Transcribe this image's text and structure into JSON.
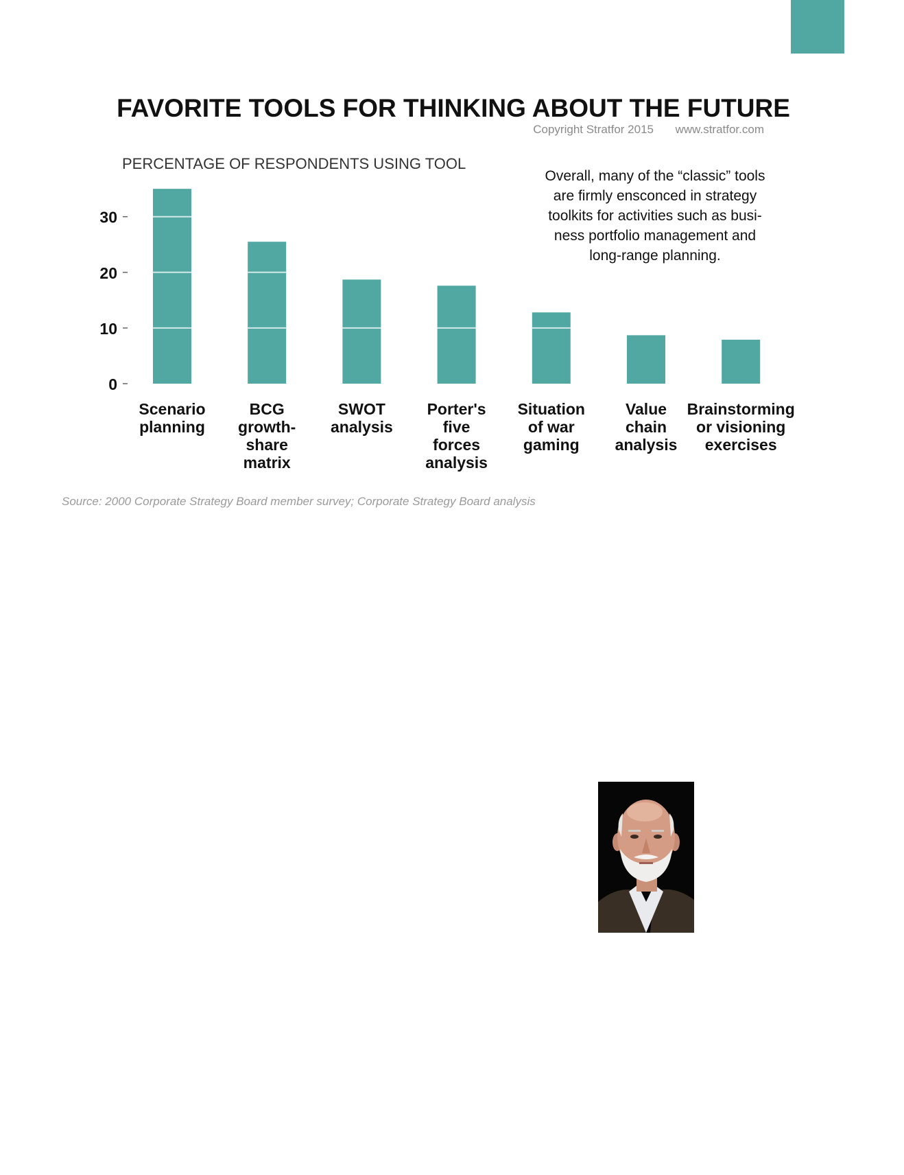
{
  "chart_data": {
    "type": "bar",
    "title": "FAVORITE TOOLS FOR THINKING ABOUT THE FUTURE",
    "copyright": "Copyright Stratfor 2015",
    "website": "www.stratfor.com",
    "ylabel": "PERCENTAGE OF RESPONDENTS USING TOOL",
    "xlabel": "",
    "ylim": [
      0,
      36
    ],
    "yticks": [
      0,
      10,
      20,
      30
    ],
    "grid": "white lines across bars at ticks",
    "bar_color": "#51a7a2",
    "categories": [
      [
        "Scenario",
        "planning"
      ],
      [
        "BCG",
        "growth-",
        "share",
        "matrix"
      ],
      [
        "SWOT",
        "analysis"
      ],
      [
        "Porter's",
        "five",
        "forces",
        "analysis"
      ],
      [
        "Situation",
        "of war",
        "gaming"
      ],
      [
        "Value",
        "chain",
        "analysis"
      ],
      [
        "Brainstorming",
        "or visioning",
        "exercises"
      ]
    ],
    "values": [
      35,
      25.5,
      18.7,
      17.6,
      12.8,
      8.7,
      7.9
    ],
    "annotation": [
      "Overall, many of the “classic” tools",
      "are firmly ensconced in strategy",
      "toolkits for activities such as busi-",
      "ness portfolio management and",
      "long-range planning."
    ],
    "source": "Source: 2000 Corporate Strategy Board member survey; Corporate Strategy Board analysis"
  },
  "photo": {
    "description_icon": "portrait-photo"
  },
  "colors": {
    "accent": "#51a7a2"
  }
}
